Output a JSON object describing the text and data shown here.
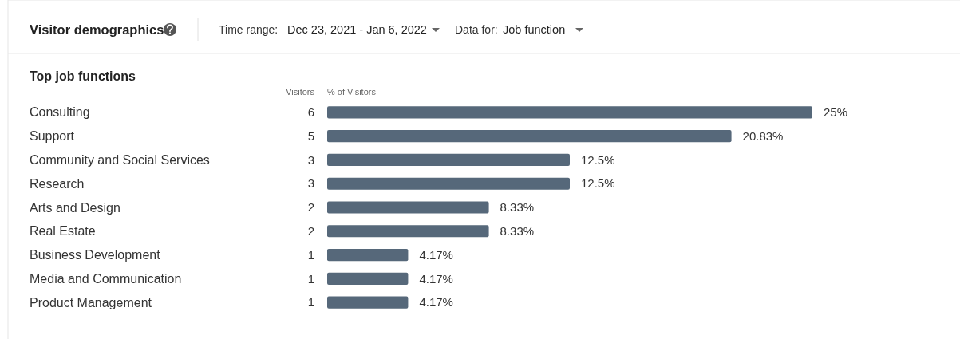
{
  "chart_data": {
    "type": "bar",
    "orientation": "horizontal",
    "title": "Visitor demographics",
    "subtitle": "Top job functions",
    "categories": [
      "Consulting",
      "Support",
      "Community and Social Services",
      "Research",
      "Arts and Design",
      "Real Estate",
      "Business Development",
      "Media and Communication",
      "Product Management"
    ],
    "values": [
      25,
      20.83,
      12.5,
      12.5,
      8.33,
      8.33,
      4.17,
      4.17,
      4.17
    ],
    "value_labels": [
      "25%",
      "20.83%",
      "12.5%",
      "12.5%",
      "8.33%",
      "8.33%",
      "4.17%",
      "4.17%",
      "4.17%"
    ],
    "color": "#56687a",
    "grid": false,
    "annotations": [
      "Time range:",
      "Dec 23, 2021 - Jan 6, 2022",
      "Data for:",
      "Job function",
      "Visitors",
      "% of Visitors",
      "6",
      "5",
      "3",
      "3",
      "2",
      "2",
      "1",
      "1",
      "1"
    ]
  }
}
